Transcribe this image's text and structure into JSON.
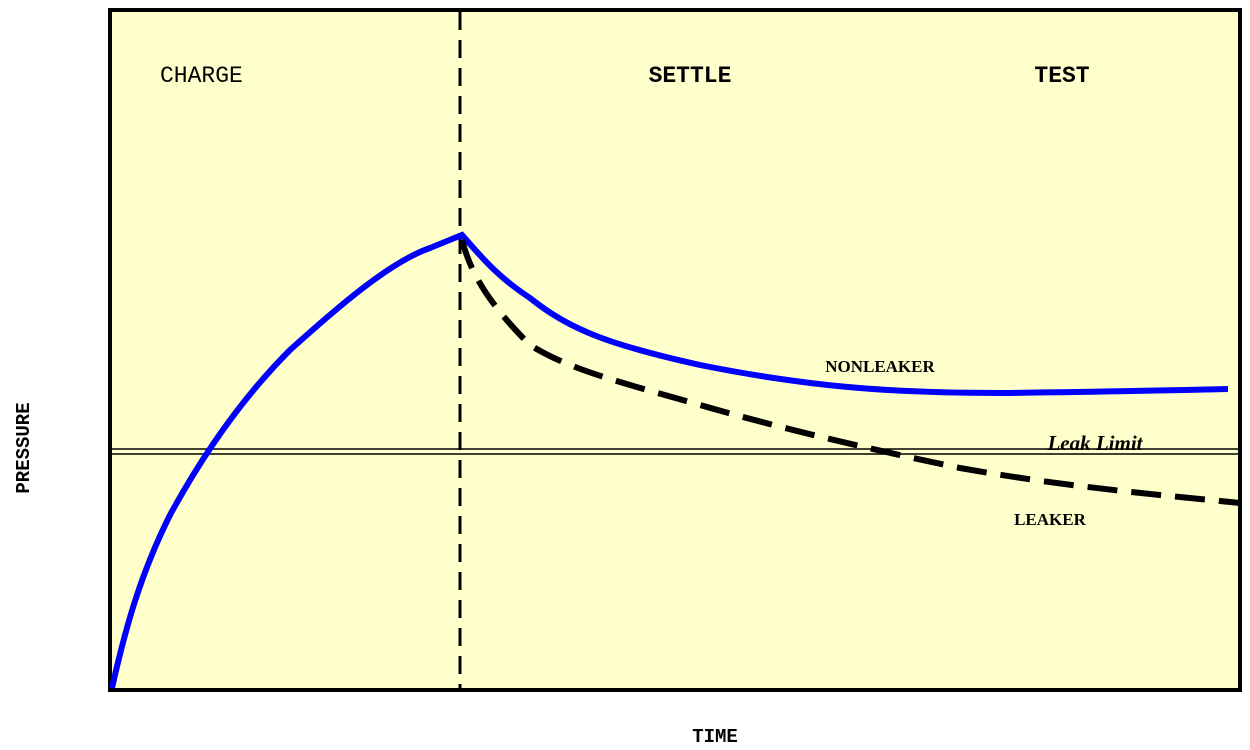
{
  "phases": [
    "CHARGE",
    "SETTLE",
    "TEST"
  ],
  "curves": {
    "nonleaker": "NONLEAKER",
    "leaker": "LEAKER",
    "limit": "Leak Limit"
  },
  "axes": {
    "y": "PRESSURE",
    "x": "TIME"
  }
}
